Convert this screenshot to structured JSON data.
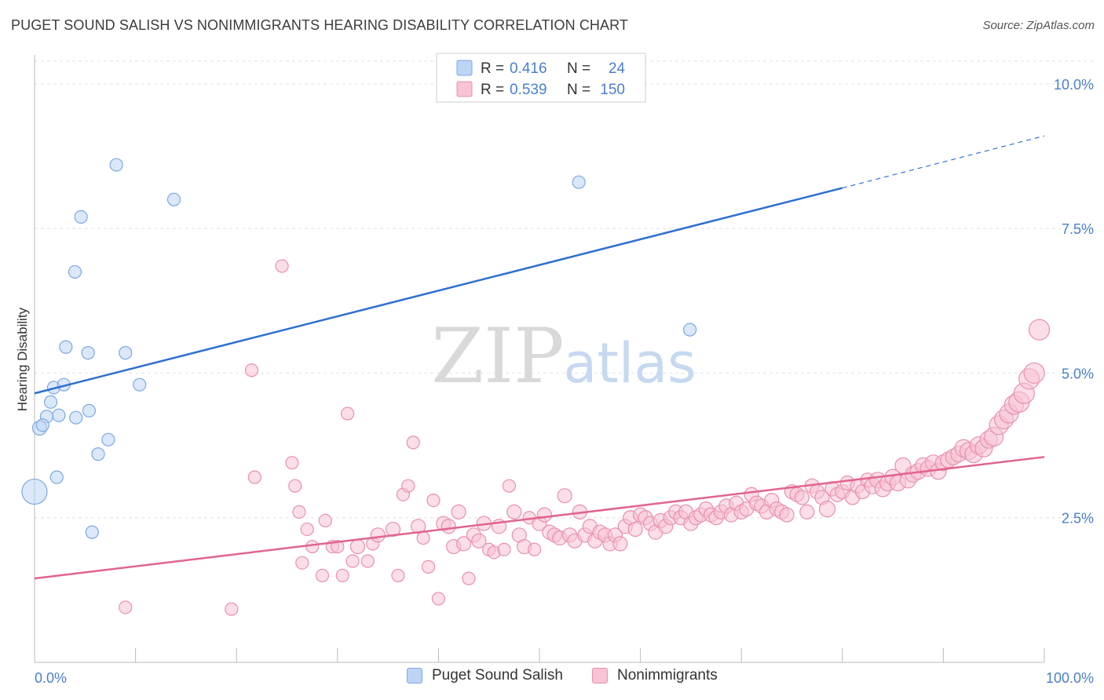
{
  "header": {
    "title": "PUGET SOUND SALISH VS NONIMMIGRANTS HEARING DISABILITY CORRELATION CHART",
    "source": "Source: ZipAtlas.com"
  },
  "watermark": {
    "zip": "ZIP",
    "atlas": "atlas"
  },
  "colors": {
    "blue_fill": "#bcd5f5",
    "blue_stroke": "#7ea8e0",
    "blue_line": "#2f6fcf",
    "pink_fill": "#f8c3d4",
    "pink_stroke": "#e890ad",
    "pink_line": "#e0648f",
    "axis_text": "#4a7fcc"
  },
  "legend": {
    "rows": [
      {
        "r_label": "R =",
        "r_value": "0.416",
        "n_label": "N =",
        "n_value": "24"
      },
      {
        "r_label": "R =",
        "r_value": "0.539",
        "n_label": "N =",
        "n_value": "150"
      }
    ]
  },
  "bottom_legend": {
    "items": [
      "Puget Sound Salish",
      "Nonimmigrants"
    ]
  },
  "chart_data": {
    "type": "scatter",
    "title": "PUGET SOUND SALISH VS NONIMMIGRANTS HEARING DISABILITY CORRELATION CHART",
    "xlabel": "",
    "ylabel": "Hearing Disability",
    "xlim": [
      0,
      100
    ],
    "ylim": [
      0,
      10.5
    ],
    "x_tick_labels": [
      "0.0%",
      "100.0%"
    ],
    "y_ticks": [
      2.5,
      5.0,
      7.5,
      10.0
    ],
    "y_tick_labels": [
      "2.5%",
      "5.0%",
      "7.5%",
      "10.0%"
    ],
    "grid": true,
    "legend_position": "top-center",
    "series": [
      {
        "name": "Puget Sound Salish",
        "R": 0.416,
        "N": 24,
        "trend": {
          "x0": 0,
          "y0": 4.65,
          "x1": 80,
          "y1": 8.2,
          "dashed_to_x": 100,
          "dashed_to_y": 9.1
        },
        "points": [
          [
            0,
            2.95,
            16
          ],
          [
            0.5,
            4.05,
            9
          ],
          [
            1.2,
            4.25,
            8
          ],
          [
            1.6,
            4.5,
            8
          ],
          [
            1.9,
            4.75,
            8
          ],
          [
            2.4,
            4.27,
            8
          ],
          [
            2.9,
            4.8,
            8
          ],
          [
            3.1,
            5.45,
            8
          ],
          [
            4.0,
            6.75,
            8
          ],
          [
            4.1,
            4.23,
            8
          ],
          [
            4.6,
            7.7,
            8
          ],
          [
            5.3,
            5.35,
            8
          ],
          [
            5.4,
            4.35,
            8
          ],
          [
            5.7,
            2.25,
            8
          ],
          [
            6.3,
            3.6,
            8
          ],
          [
            7.3,
            3.85,
            8
          ],
          [
            8.1,
            8.6,
            8
          ],
          [
            9.0,
            5.35,
            8
          ],
          [
            10.4,
            4.8,
            8
          ],
          [
            13.8,
            8.0,
            8
          ],
          [
            53.9,
            8.3,
            8
          ],
          [
            64.9,
            5.75,
            8
          ],
          [
            2.2,
            3.2,
            8
          ],
          [
            0.8,
            4.1,
            8
          ]
        ]
      },
      {
        "name": "Nonimmigrants",
        "R": 0.539,
        "N": 150,
        "trend": {
          "x0": 0,
          "y0": 1.45,
          "x1": 100,
          "y1": 3.55
        },
        "points": [
          [
            9,
            0.95,
            8
          ],
          [
            19.5,
            0.92,
            8
          ],
          [
            21.5,
            5.05,
            8
          ],
          [
            21.8,
            3.2,
            8
          ],
          [
            24.5,
            6.85,
            8
          ],
          [
            25.5,
            3.45,
            8
          ],
          [
            25.8,
            3.05,
            8
          ],
          [
            26.2,
            2.6,
            8
          ],
          [
            26.5,
            1.72,
            8
          ],
          [
            27,
            2.3,
            8
          ],
          [
            27.5,
            2.0,
            8
          ],
          [
            28.5,
            1.5,
            8
          ],
          [
            28.8,
            2.45,
            8
          ],
          [
            29.5,
            2.0,
            8
          ],
          [
            30,
            2.0,
            8
          ],
          [
            30.5,
            1.5,
            8
          ],
          [
            31,
            4.3,
            8
          ],
          [
            31.5,
            1.75,
            8
          ],
          [
            32,
            2.0,
            9
          ],
          [
            33,
            1.75,
            8
          ],
          [
            33.5,
            2.05,
            8
          ],
          [
            34,
            2.2,
            9
          ],
          [
            35.5,
            2.3,
            9
          ],
          [
            36,
            1.5,
            8
          ],
          [
            36.5,
            2.9,
            8
          ],
          [
            37,
            3.05,
            8
          ],
          [
            37.5,
            3.8,
            8
          ],
          [
            38,
            2.35,
            9
          ],
          [
            38.5,
            2.15,
            8
          ],
          [
            39,
            1.65,
            8
          ],
          [
            39.5,
            2.8,
            8
          ],
          [
            40,
            1.1,
            8
          ],
          [
            40.5,
            2.4,
            9
          ],
          [
            41,
            2.35,
            9
          ],
          [
            41.5,
            2.0,
            9
          ],
          [
            42,
            2.6,
            9
          ],
          [
            42.5,
            2.05,
            9
          ],
          [
            43,
            1.45,
            8
          ],
          [
            43.5,
            2.2,
            9
          ],
          [
            44,
            2.1,
            9
          ],
          [
            44.5,
            2.4,
            9
          ],
          [
            45,
            1.95,
            8
          ],
          [
            45.5,
            1.9,
            8
          ],
          [
            46,
            2.35,
            9
          ],
          [
            46.5,
            1.95,
            8
          ],
          [
            47,
            3.05,
            8
          ],
          [
            47.5,
            2.6,
            9
          ],
          [
            48,
            2.2,
            9
          ],
          [
            48.5,
            2.0,
            9
          ],
          [
            49,
            2.5,
            8
          ],
          [
            49.5,
            1.95,
            8
          ],
          [
            50,
            2.4,
            9
          ],
          [
            50.5,
            2.55,
            9
          ],
          [
            51,
            2.25,
            9
          ],
          [
            51.5,
            2.2,
            9
          ],
          [
            52,
            2.15,
            9
          ],
          [
            52.5,
            2.88,
            9
          ],
          [
            53,
            2.2,
            9
          ],
          [
            53.5,
            2.1,
            9
          ],
          [
            54,
            2.6,
            9
          ],
          [
            54.5,
            2.2,
            9
          ],
          [
            55,
            2.35,
            9
          ],
          [
            55.5,
            2.1,
            9
          ],
          [
            56,
            2.25,
            9
          ],
          [
            56.5,
            2.2,
            9
          ],
          [
            57,
            2.05,
            9
          ],
          [
            57.5,
            2.2,
            9
          ],
          [
            58,
            2.05,
            9
          ],
          [
            58.5,
            2.35,
            9
          ],
          [
            59,
            2.5,
            9
          ],
          [
            59.5,
            2.3,
            9
          ],
          [
            60,
            2.55,
            9
          ],
          [
            60.5,
            2.5,
            9
          ],
          [
            61,
            2.4,
            9
          ],
          [
            61.5,
            2.25,
            9
          ],
          [
            62,
            2.45,
            9
          ],
          [
            62.5,
            2.35,
            9
          ],
          [
            63,
            2.5,
            9
          ],
          [
            63.5,
            2.6,
            9
          ],
          [
            64,
            2.5,
            9
          ],
          [
            64.5,
            2.6,
            9
          ],
          [
            65,
            2.4,
            9
          ],
          [
            65.5,
            2.5,
            9
          ],
          [
            66,
            2.55,
            9
          ],
          [
            66.5,
            2.65,
            9
          ],
          [
            67,
            2.55,
            9
          ],
          [
            67.5,
            2.5,
            9
          ],
          [
            68,
            2.6,
            9
          ],
          [
            68.5,
            2.7,
            9
          ],
          [
            69,
            2.55,
            9
          ],
          [
            69.5,
            2.75,
            9
          ],
          [
            70,
            2.6,
            9
          ],
          [
            70.5,
            2.65,
            9
          ],
          [
            71,
            2.9,
            9
          ],
          [
            71.5,
            2.75,
            9
          ],
          [
            72,
            2.7,
            9
          ],
          [
            72.5,
            2.6,
            9
          ],
          [
            73,
            2.8,
            9
          ],
          [
            73.5,
            2.65,
            9
          ],
          [
            74,
            2.6,
            9
          ],
          [
            74.5,
            2.55,
            9
          ],
          [
            75,
            2.95,
            9
          ],
          [
            75.5,
            2.9,
            9
          ],
          [
            76,
            2.85,
            9
          ],
          [
            76.5,
            2.6,
            9
          ],
          [
            77,
            3.05,
            9
          ],
          [
            77.5,
            2.95,
            9
          ],
          [
            78,
            2.85,
            9
          ],
          [
            78.5,
            2.65,
            10
          ],
          [
            79,
            3.0,
            9
          ],
          [
            79.5,
            2.9,
            9
          ],
          [
            80,
            2.95,
            9
          ],
          [
            80.5,
            3.1,
            9
          ],
          [
            81,
            2.85,
            9
          ],
          [
            81.5,
            3.05,
            9
          ],
          [
            82,
            2.95,
            9
          ],
          [
            82.5,
            3.15,
            9
          ],
          [
            83,
            3.05,
            10
          ],
          [
            83.5,
            3.15,
            10
          ],
          [
            84,
            3.0,
            10
          ],
          [
            84.5,
            3.1,
            10
          ],
          [
            85,
            3.2,
            10
          ],
          [
            85.5,
            3.1,
            10
          ],
          [
            86,
            3.4,
            10
          ],
          [
            86.5,
            3.15,
            10
          ],
          [
            87,
            3.25,
            10
          ],
          [
            87.5,
            3.3,
            10
          ],
          [
            88,
            3.4,
            10
          ],
          [
            88.5,
            3.35,
            10
          ],
          [
            89,
            3.45,
            10
          ],
          [
            89.5,
            3.3,
            10
          ],
          [
            90,
            3.45,
            10
          ],
          [
            90.5,
            3.5,
            10
          ],
          [
            91,
            3.55,
            10
          ],
          [
            91.5,
            3.6,
            10
          ],
          [
            92,
            3.7,
            11
          ],
          [
            92.5,
            3.65,
            11
          ],
          [
            93,
            3.6,
            11
          ],
          [
            93.5,
            3.75,
            11
          ],
          [
            94,
            3.7,
            11
          ],
          [
            94.5,
            3.85,
            11
          ],
          [
            95,
            3.9,
            12
          ],
          [
            95.5,
            4.1,
            12
          ],
          [
            96,
            4.2,
            12
          ],
          [
            96.5,
            4.3,
            12
          ],
          [
            97,
            4.45,
            12
          ],
          [
            97.5,
            4.5,
            13
          ],
          [
            98,
            4.65,
            13
          ],
          [
            98.5,
            4.9,
            13
          ],
          [
            99,
            5.0,
            13
          ],
          [
            99.5,
            5.75,
            13
          ],
          [
            16.5,
            0.0,
            0
          ],
          [
            17,
            0.0,
            0
          ],
          [
            17.5,
            0.0,
            0
          ],
          [
            18,
            0.0,
            0
          ]
        ]
      }
    ]
  }
}
